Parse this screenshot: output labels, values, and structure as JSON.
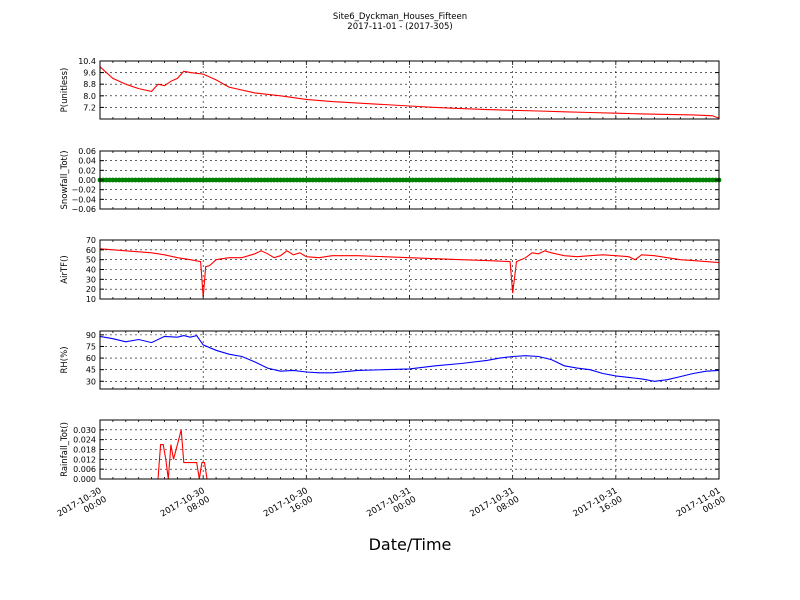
{
  "figure": {
    "title_line1": "Site6_Dyckman_Houses_Fifteen",
    "title_line2": "2017-11-01 - (2017-305)",
    "xlabel": "Date/Time"
  },
  "chart_data": [
    {
      "type": "line",
      "ylabel": "P(unitless)",
      "color": "#ff0000",
      "ylim": [
        6.4,
        10.4
      ],
      "yticks": [
        7.2,
        8.0,
        8.8,
        9.6,
        10.4
      ],
      "ytick_labels": [
        "7.2",
        "8.0",
        "8.8",
        "9.6",
        "10.4"
      ],
      "xlim_hours": [
        0,
        48
      ],
      "grid": true,
      "x": [
        0,
        1,
        2,
        3,
        4,
        4.5,
        5,
        5.5,
        6,
        6.5,
        7,
        8,
        9,
        10,
        12,
        14,
        16,
        18,
        20,
        22,
        24,
        26,
        28,
        30,
        32,
        34,
        36,
        38,
        40,
        42,
        44,
        46,
        47.5,
        48
      ],
      "values": [
        10.0,
        9.2,
        8.8,
        8.5,
        8.3,
        8.8,
        8.7,
        9.0,
        9.2,
        9.7,
        9.6,
        9.5,
        9.1,
        8.6,
        8.2,
        8.0,
        7.75,
        7.6,
        7.5,
        7.4,
        7.3,
        7.2,
        7.12,
        7.05,
        7.0,
        6.95,
        6.9,
        6.85,
        6.8,
        6.75,
        6.72,
        6.68,
        6.62,
        6.45
      ]
    },
    {
      "type": "scatter",
      "ylabel": "Snowfall_Tot()",
      "color": "#008000",
      "ylim": [
        -0.06,
        0.06
      ],
      "yticks": [
        -0.06,
        -0.04,
        -0.02,
        0.0,
        0.02,
        0.04,
        0.06
      ],
      "ytick_labels": [
        "−0.06",
        "−0.04",
        "−0.02",
        "0.00",
        "0.02",
        "0.04",
        "0.06"
      ],
      "xlim_hours": [
        0,
        48
      ],
      "grid": true,
      "x_start": 0,
      "x_end": 48,
      "x_step": 0.25,
      "constant_value": 0.0
    },
    {
      "type": "line",
      "ylabel": "AirTF()",
      "color": "#ff0000",
      "ylim": [
        10,
        70
      ],
      "yticks": [
        10,
        20,
        30,
        40,
        50,
        60,
        70
      ],
      "ytick_labels": [
        "10",
        "20",
        "30",
        "40",
        "50",
        "60",
        "70"
      ],
      "xlim_hours": [
        0,
        48
      ],
      "grid": true,
      "x": [
        0,
        1,
        2,
        3,
        4,
        5,
        6,
        7,
        7.8,
        8.0,
        8.2,
        8.5,
        9,
        10,
        11,
        12,
        12.5,
        13,
        13.5,
        14,
        14.5,
        15,
        15.5,
        16,
        17,
        18,
        20,
        22,
        24,
        26,
        28,
        30,
        31.8,
        32.0,
        32.3,
        33,
        33.5,
        34,
        34.5,
        35,
        36,
        37,
        38,
        39,
        40,
        41,
        41.5,
        42,
        43,
        44,
        45,
        46,
        47,
        48
      ],
      "values": [
        61,
        60,
        59,
        58,
        57,
        55,
        52,
        50,
        48,
        12,
        43,
        44,
        50,
        52,
        52,
        56,
        59,
        56,
        52,
        54,
        59,
        55,
        57,
        53,
        52,
        54,
        54,
        53,
        52,
        51,
        50,
        49,
        48,
        16,
        48,
        52,
        57,
        56,
        59,
        57,
        54,
        53,
        54,
        55,
        54,
        53,
        50,
        55,
        54,
        52,
        50,
        49,
        48,
        47
      ]
    },
    {
      "type": "line",
      "ylabel": "RH(%)",
      "color": "#0000ff",
      "ylim": [
        20,
        95
      ],
      "yticks": [
        30,
        45,
        60,
        75,
        90
      ],
      "ytick_labels": [
        "30",
        "45",
        "60",
        "75",
        "90"
      ],
      "xlim_hours": [
        0,
        48
      ],
      "grid": true,
      "x": [
        0,
        1,
        2,
        3,
        4,
        5,
        6,
        6.5,
        7,
        7.5,
        8,
        9,
        10,
        11,
        12,
        13,
        14,
        15,
        16,
        17,
        18,
        20,
        22,
        24,
        26,
        28,
        30,
        31,
        32,
        33,
        34,
        35,
        36,
        37,
        38,
        39,
        40,
        41,
        42,
        43,
        44,
        45,
        46,
        47,
        48
      ],
      "values": [
        88,
        85,
        81,
        84,
        80,
        88,
        87,
        89,
        87,
        89,
        77,
        70,
        65,
        62,
        55,
        47,
        43,
        44,
        42,
        41,
        41,
        44,
        45,
        46,
        50,
        53,
        57,
        60,
        62,
        63,
        62,
        58,
        50,
        47,
        45,
        40,
        37,
        35,
        33,
        30,
        32,
        36,
        40,
        43,
        44
      ]
    },
    {
      "type": "line",
      "ylabel": "Rainfall_Tot()",
      "color": "#ff0000",
      "ylim": [
        0,
        0.036
      ],
      "yticks": [
        0.0,
        0.006,
        0.012,
        0.018,
        0.024,
        0.03
      ],
      "ytick_labels": [
        "0.000",
        "0.006",
        "0.012",
        "0.018",
        "0.024",
        "0.030"
      ],
      "xlim_hours": [
        0,
        48
      ],
      "grid": true,
      "x": [
        0,
        4.5,
        4.7,
        4.9,
        5.1,
        5.3,
        5.5,
        5.7,
        5.9,
        6.1,
        6.3,
        6.5,
        6.7,
        6.9,
        7.1,
        7.3,
        7.5,
        7.7,
        7.9,
        8.1,
        8.3,
        8.5,
        48
      ],
      "values": [
        0,
        0,
        0.021,
        0.021,
        0.012,
        0,
        0.021,
        0.012,
        0.018,
        0.024,
        0.03,
        0.01,
        0.01,
        0.01,
        0.01,
        0.01,
        0.01,
        0.0,
        0.01,
        0.01,
        0.0,
        0,
        0
      ]
    }
  ],
  "xaxis": {
    "ticks_hours": [
      0,
      8,
      16,
      24,
      32,
      40,
      48
    ],
    "tick_labels": [
      [
        "2017-10-30",
        "00:00"
      ],
      [
        "2017-10-30",
        "08:00"
      ],
      [
        "2017-10-30",
        "16:00"
      ],
      [
        "2017-10-31",
        "00:00"
      ],
      [
        "2017-10-31",
        "08:00"
      ],
      [
        "2017-10-31",
        "16:00"
      ],
      [
        "2017-11-01",
        "00:00"
      ]
    ]
  }
}
